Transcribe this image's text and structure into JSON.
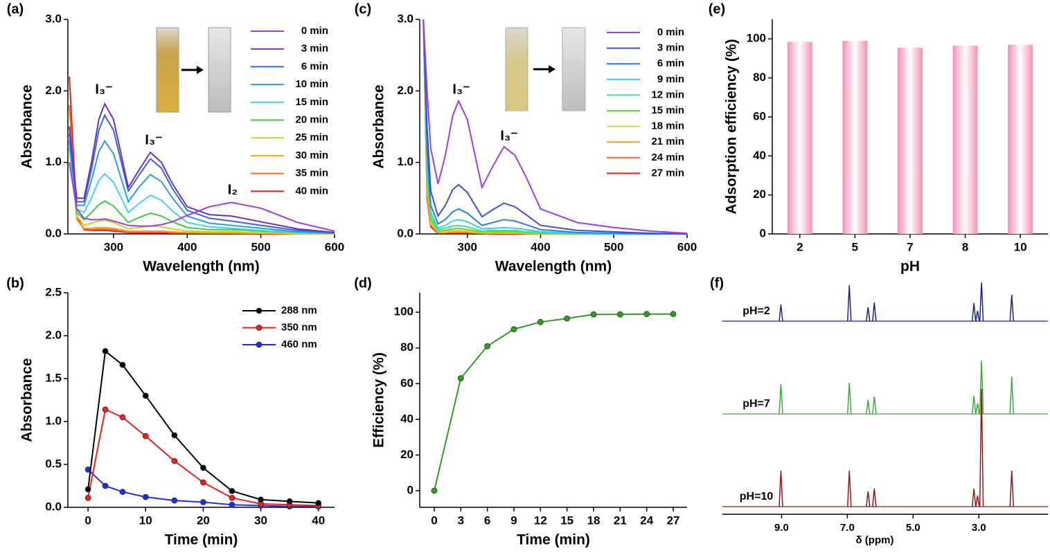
{
  "chart_data": [
    {
      "type": "line",
      "panel_label": "(a)",
      "x_label": "Wavelength (nm)",
      "y_label": "Absorbance",
      "x": [
        240,
        250,
        260,
        270,
        280,
        288,
        300,
        320,
        335,
        350,
        365,
        380,
        400,
        430,
        460,
        500,
        550,
        600
      ],
      "xlim": [
        238,
        600
      ],
      "xticks": [
        300,
        400,
        500,
        600
      ],
      "ylim": [
        0,
        3
      ],
      "yticks": [
        {
          "value": 0,
          "label": "0.0"
        },
        {
          "value": 1,
          "label": "1.0"
        },
        {
          "value": 2,
          "label": "2.0"
        },
        {
          "value": 3,
          "label": "3.0"
        }
      ],
      "annotations": [
        "I₃⁻",
        "I₃⁻",
        "I₂"
      ],
      "legend": "upper right",
      "series": [
        {
          "name": "0 min",
          "color": "#a23be0",
          "values": [
            1.0,
            0.35,
            0.22,
            0.2,
            0.2,
            0.21,
            0.18,
            0.12,
            0.11,
            0.11,
            0.13,
            0.17,
            0.26,
            0.38,
            0.44,
            0.36,
            0.16,
            0.04
          ]
        },
        {
          "name": "3 min",
          "color": "#6a2fc4",
          "values": [
            1.5,
            0.5,
            0.5,
            1.0,
            1.6,
            1.82,
            1.6,
            0.65,
            0.9,
            1.14,
            1.0,
            0.7,
            0.38,
            0.27,
            0.25,
            0.17,
            0.07,
            0.02
          ]
        },
        {
          "name": "6 min",
          "color": "#3b62d6",
          "values": [
            1.4,
            0.45,
            0.45,
            0.9,
            1.45,
            1.66,
            1.45,
            0.6,
            0.83,
            1.05,
            0.92,
            0.63,
            0.33,
            0.22,
            0.18,
            0.12,
            0.05,
            0.02
          ]
        },
        {
          "name": "10 min",
          "color": "#2c9be6",
          "values": [
            1.3,
            0.4,
            0.4,
            0.75,
            1.15,
            1.3,
            1.12,
            0.45,
            0.66,
            0.83,
            0.73,
            0.5,
            0.25,
            0.15,
            0.12,
            0.08,
            0.03,
            0.01
          ]
        },
        {
          "name": "15 min",
          "color": "#3fd3ec",
          "values": [
            1.2,
            0.35,
            0.3,
            0.5,
            0.75,
            0.84,
            0.72,
            0.3,
            0.43,
            0.54,
            0.47,
            0.32,
            0.16,
            0.1,
            0.08,
            0.05,
            0.02,
            0.01
          ]
        },
        {
          "name": "20 min",
          "color": "#3ccf3c",
          "values": [
            1.2,
            0.3,
            0.2,
            0.3,
            0.41,
            0.46,
            0.39,
            0.16,
            0.23,
            0.29,
            0.25,
            0.17,
            0.09,
            0.06,
            0.06,
            0.04,
            0.02,
            0.01
          ]
        },
        {
          "name": "25 min",
          "color": "#c9d22a",
          "values": [
            1.3,
            0.25,
            0.12,
            0.15,
            0.18,
            0.19,
            0.16,
            0.07,
            0.09,
            0.11,
            0.1,
            0.07,
            0.04,
            0.03,
            0.03,
            0.02,
            0.01,
            0
          ]
        },
        {
          "name": "30 min",
          "color": "#f2a623",
          "values": [
            1.5,
            0.2,
            0.08,
            0.08,
            0.09,
            0.09,
            0.08,
            0.04,
            0.04,
            0.04,
            0.04,
            0.03,
            0.02,
            0.02,
            0.02,
            0.01,
            0,
            0
          ]
        },
        {
          "name": "35 min",
          "color": "#f26a2a",
          "values": [
            1.8,
            0.2,
            0.07,
            0.06,
            0.07,
            0.07,
            0.06,
            0.03,
            0.03,
            0.03,
            0.03,
            0.02,
            0.02,
            0.01,
            0.01,
            0.01,
            0,
            0
          ]
        },
        {
          "name": "40 min",
          "color": "#e8201e",
          "values": [
            2.2,
            0.25,
            0.06,
            0.05,
            0.05,
            0.05,
            0.04,
            0.02,
            0.02,
            0.02,
            0.02,
            0.01,
            0.01,
            0.01,
            0.01,
            0,
            0,
            0
          ]
        }
      ]
    },
    {
      "type": "line",
      "panel_label": "(b)",
      "x_label": "Time (min)",
      "y_label": "Absorbance",
      "markers": true,
      "x": [
        0,
        3,
        6,
        10,
        15,
        20,
        25,
        30,
        35,
        40
      ],
      "xlim": [
        -3.5,
        42.8
      ],
      "xticks": [
        0,
        10,
        20,
        30,
        40
      ],
      "ylim": [
        0,
        2.5
      ],
      "yticks": [
        {
          "value": 0,
          "label": "0.0"
        },
        {
          "value": 0.5,
          "label": "0.5"
        },
        {
          "value": 1,
          "label": "1.0"
        },
        {
          "value": 1.5,
          "label": "1.5"
        },
        {
          "value": 2,
          "label": "2.0"
        },
        {
          "value": 2.5,
          "label": "2.5"
        }
      ],
      "legend": "upper right",
      "series": [
        {
          "name": "288 nm",
          "color": "#000000",
          "values": [
            0.21,
            1.82,
            1.66,
            1.3,
            0.84,
            0.46,
            0.19,
            0.09,
            0.07,
            0.05
          ]
        },
        {
          "name": "350 nm",
          "color": "#e8201e",
          "values": [
            0.11,
            1.14,
            1.05,
            0.83,
            0.54,
            0.29,
            0.11,
            0.04,
            0.03,
            0.02
          ]
        },
        {
          "name": "460 nm",
          "color": "#1f2ee0",
          "values": [
            0.44,
            0.25,
            0.18,
            0.12,
            0.08,
            0.06,
            0.03,
            0.02,
            0.01,
            0.01
          ]
        }
      ]
    },
    {
      "type": "line",
      "panel_label": "(c)",
      "x_label": "Wavelength (nm)",
      "y_label": "Absorbance",
      "x": [
        240,
        245,
        250,
        260,
        270,
        280,
        288,
        300,
        320,
        335,
        350,
        365,
        380,
        400,
        450,
        500,
        550,
        600
      ],
      "xlim": [
        235,
        600
      ],
      "xticks": [
        300,
        400,
        500,
        600
      ],
      "ylim": [
        0,
        3
      ],
      "yticks": [
        {
          "value": 0,
          "label": "0.0"
        },
        {
          "value": 1,
          "label": "1.0"
        },
        {
          "value": 2,
          "label": "2.0"
        },
        {
          "value": 3,
          "label": "3.0"
        }
      ],
      "annotations": [
        "I₃⁻",
        "I₃⁻"
      ],
      "legend": "upper right",
      "series": [
        {
          "name": "0 min",
          "color": "#a23be0",
          "values": [
            3.0,
            2.0,
            1.2,
            0.7,
            1.1,
            1.65,
            1.86,
            1.6,
            0.65,
            0.95,
            1.22,
            1.1,
            0.8,
            0.35,
            0.16,
            0.09,
            0.04,
            0.01
          ]
        },
        {
          "name": "3 min",
          "color": "#3b4fd2",
          "values": [
            3.0,
            1.5,
            0.6,
            0.25,
            0.4,
            0.62,
            0.69,
            0.58,
            0.24,
            0.34,
            0.43,
            0.38,
            0.27,
            0.12,
            0.05,
            0.03,
            0.01,
            0
          ]
        },
        {
          "name": "6 min",
          "color": "#2a80da",
          "values": [
            3.0,
            1.2,
            0.4,
            0.14,
            0.2,
            0.31,
            0.35,
            0.29,
            0.12,
            0.16,
            0.2,
            0.18,
            0.13,
            0.06,
            0.02,
            0.01,
            0,
            0
          ]
        },
        {
          "name": "9 min",
          "color": "#3ccbea",
          "values": [
            3.0,
            1.0,
            0.3,
            0.08,
            0.12,
            0.18,
            0.2,
            0.17,
            0.07,
            0.08,
            0.09,
            0.08,
            0.06,
            0.03,
            0.01,
            0,
            0,
            0
          ]
        },
        {
          "name": "12 min",
          "color": "#3ee0a2",
          "values": [
            3.0,
            0.9,
            0.25,
            0.06,
            0.08,
            0.11,
            0.12,
            0.1,
            0.04,
            0.05,
            0.05,
            0.05,
            0.03,
            0.02,
            0.01,
            0,
            0,
            0
          ]
        },
        {
          "name": "15 min",
          "color": "#5fd932",
          "values": [
            3.0,
            0.8,
            0.2,
            0.04,
            0.05,
            0.07,
            0.08,
            0.06,
            0.03,
            0.03,
            0.03,
            0.03,
            0.02,
            0.01,
            0,
            0,
            0,
            0
          ]
        },
        {
          "name": "18 min",
          "color": "#d2dc24",
          "values": [
            3.0,
            0.7,
            0.17,
            0.03,
            0.03,
            0.05,
            0.05,
            0.04,
            0.02,
            0.02,
            0.02,
            0.02,
            0.01,
            0.01,
            0,
            0,
            0,
            0
          ]
        },
        {
          "name": "21 min",
          "color": "#f7a023",
          "values": [
            3.0,
            0.6,
            0.14,
            0.02,
            0.02,
            0.03,
            0.03,
            0.03,
            0.01,
            0.01,
            0.01,
            0.01,
            0.01,
            0,
            0,
            0,
            0,
            0
          ]
        },
        {
          "name": "24 min",
          "color": "#f36526",
          "values": [
            3.0,
            0.55,
            0.12,
            0.02,
            0.02,
            0.02,
            0.02,
            0.02,
            0.01,
            0.01,
            0.01,
            0.01,
            0,
            0,
            0,
            0,
            0,
            0
          ]
        },
        {
          "name": "27 min",
          "color": "#d8231f",
          "values": [
            3.0,
            0.5,
            0.1,
            0.01,
            0.01,
            0.02,
            0.02,
            0.01,
            0.01,
            0,
            0,
            0,
            0,
            0,
            0,
            0,
            0,
            0
          ]
        }
      ]
    },
    {
      "type": "line",
      "panel_label": "(d)",
      "x_label": "Time (min)",
      "y_label": "Efficiency (%)",
      "markers": true,
      "x": [
        0,
        3,
        6,
        9,
        12,
        15,
        18,
        21,
        24,
        27
      ],
      "xlim": [
        -1.64,
        28.56
      ],
      "xticks": [
        0,
        3,
        6,
        9,
        12,
        15,
        18,
        21,
        24,
        27
      ],
      "ylim": [
        -9.3,
        110.9
      ],
      "yticks": [
        0,
        20,
        40,
        60,
        80,
        100
      ],
      "color": "#2e9e1f",
      "values": [
        0,
        63,
        81,
        90.5,
        94.5,
        96.5,
        98.8,
        98.8,
        99,
        99
      ]
    },
    {
      "type": "bar",
      "panel_label": "(e)",
      "x_label": "pH",
      "y_label": "Adsorption efficiency (%)",
      "categories": [
        "2",
        "5",
        "7",
        "8",
        "10"
      ],
      "values": [
        98.5,
        99,
        95.5,
        96.5,
        97
      ],
      "color": "#f48fb8",
      "ylim": [
        0,
        110
      ],
      "yticks": [
        0,
        20,
        40,
        60,
        80,
        100
      ]
    },
    {
      "type": "nmr",
      "panel_label": "(f)",
      "x_label": "δ (ppm)",
      "x": [
        9.02,
        6.94,
        6.37,
        6.18,
        3.15,
        3.04,
        2.92,
        2.0
      ],
      "xlim": [
        10.8,
        0.9
      ],
      "xticks": [
        {
          "value": 9,
          "label": "9.0"
        },
        {
          "value": 7,
          "label": "7.0"
        },
        {
          "value": 5,
          "label": "5.0"
        },
        {
          "value": 3,
          "label": "3.0"
        }
      ],
      "series": [
        {
          "name": "pH=2",
          "color": "#1a237e",
          "values": [
            24,
            52,
            20,
            27,
            26,
            15,
            56,
            38
          ]
        },
        {
          "name": "pH=7",
          "color": "#3fa83a",
          "values": [
            43,
            45,
            20,
            25,
            26,
            15,
            77,
            54
          ]
        },
        {
          "name": "pH=10",
          "color": "#8b1a1a",
          "values": [
            52,
            52,
            22,
            26,
            26,
            16,
            170,
            52
          ]
        }
      ]
    }
  ]
}
